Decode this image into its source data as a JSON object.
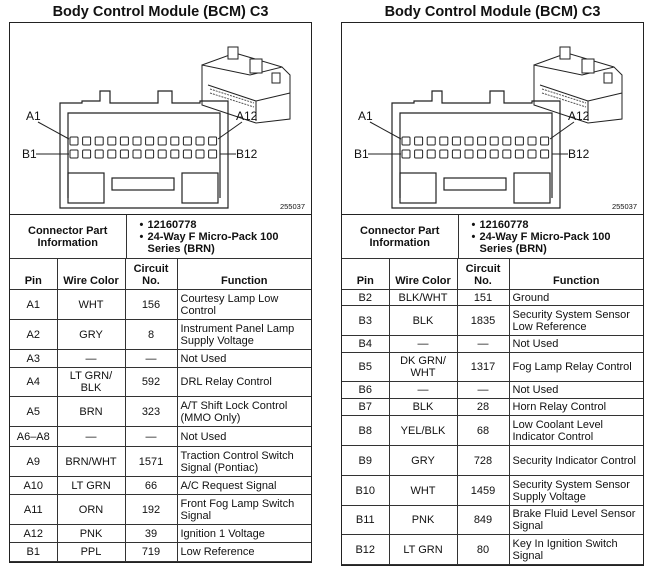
{
  "panels": [
    {
      "title": "Body Control Module (BCM) C3",
      "diagram": {
        "labels": {
          "a1": "A1",
          "a12": "A12",
          "b1": "B1",
          "b12": "B12"
        },
        "code": "255037"
      },
      "connector_info": {
        "label": "Connector Part Information",
        "items": [
          "12160778",
          "24-Way F Micro-Pack 100 Series (BRN)"
        ]
      },
      "headers": {
        "pin": "Pin",
        "wire": "Wire Color",
        "circuit": "Circuit No.",
        "function": "Function"
      },
      "rows": [
        {
          "pin": "A1",
          "wire": "WHT",
          "circuit": "156",
          "function": "Courtesy Lamp Low Control"
        },
        {
          "pin": "A2",
          "wire": "GRY",
          "circuit": "8",
          "function": "Instrument Panel Lamp Supply Voltage"
        },
        {
          "pin": "A3",
          "wire": "—",
          "circuit": "—",
          "function": "Not Used"
        },
        {
          "pin": "A4",
          "wire": "LT GRN/ BLK",
          "circuit": "592",
          "function": "DRL Relay Control"
        },
        {
          "pin": "A5",
          "wire": "BRN",
          "circuit": "323",
          "function": "A/T Shift Lock Control (MMO Only)"
        },
        {
          "pin": "A6–A8",
          "wire": "—",
          "circuit": "—",
          "function": "Not Used"
        },
        {
          "pin": "A9",
          "wire": "BRN/WHT",
          "circuit": "1571",
          "function": "Traction Control Switch Signal (Pontiac)"
        },
        {
          "pin": "A10",
          "wire": "LT GRN",
          "circuit": "66",
          "function": "A/C Request Signal"
        },
        {
          "pin": "A11",
          "wire": "ORN",
          "circuit": "192",
          "function": "Front Fog Lamp Switch Signal"
        },
        {
          "pin": "A12",
          "wire": "PNK",
          "circuit": "39",
          "function": "Ignition 1 Voltage"
        },
        {
          "pin": "B1",
          "wire": "PPL",
          "circuit": "719",
          "function": "Low Reference"
        }
      ]
    },
    {
      "title": "Body Control Module (BCM) C3",
      "diagram": {
        "labels": {
          "a1": "A1",
          "a12": "A12",
          "b1": "B1",
          "b12": "B12"
        },
        "code": "255037"
      },
      "connector_info": {
        "label": "Connector Part Information",
        "items": [
          "12160778",
          "24-Way F Micro-Pack 100 Series (BRN)"
        ]
      },
      "headers": {
        "pin": "Pin",
        "wire": "Wire Color",
        "circuit": "Circuit No.",
        "function": "Function"
      },
      "rows": [
        {
          "pin": "B2",
          "wire": "BLK/WHT",
          "circuit": "151",
          "function": "Ground"
        },
        {
          "pin": "B3",
          "wire": "BLK",
          "circuit": "1835",
          "function": "Security System Sensor Low Reference"
        },
        {
          "pin": "B4",
          "wire": "—",
          "circuit": "—",
          "function": "Not Used"
        },
        {
          "pin": "B5",
          "wire": "DK GRN/ WHT",
          "circuit": "1317",
          "function": "Fog Lamp Relay Control"
        },
        {
          "pin": "B6",
          "wire": "—",
          "circuit": "—",
          "function": "Not Used"
        },
        {
          "pin": "B7",
          "wire": "BLK",
          "circuit": "28",
          "function": "Horn Relay Control"
        },
        {
          "pin": "B8",
          "wire": "YEL/BLK",
          "circuit": "68",
          "function": "Low Coolant Level Indicator Control"
        },
        {
          "pin": "B9",
          "wire": "GRY",
          "circuit": "728",
          "function": "Security Indicator Control"
        },
        {
          "pin": "B10",
          "wire": "WHT",
          "circuit": "1459",
          "function": "Security System Sensor Supply Voltage"
        },
        {
          "pin": "B11",
          "wire": "PNK",
          "circuit": "849",
          "function": "Brake Fluid Level Sensor Signal"
        },
        {
          "pin": "B12",
          "wire": "LT GRN",
          "circuit": "80",
          "function": "Key In Ignition Switch Signal"
        }
      ]
    }
  ]
}
